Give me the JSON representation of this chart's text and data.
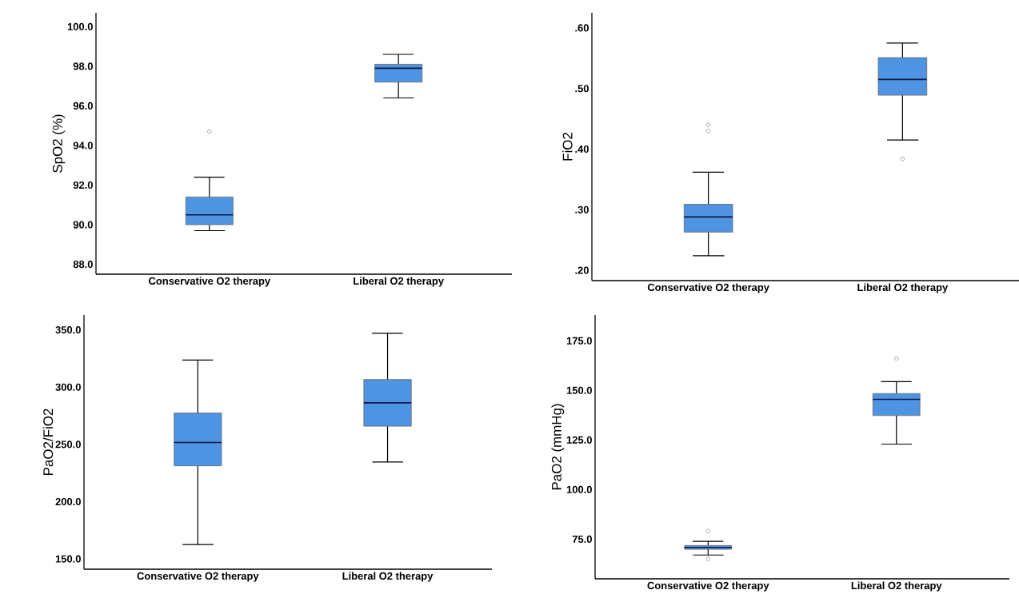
{
  "chart_data": [
    {
      "type": "box",
      "categories": [
        "Conservative O2 therapy",
        "Liberal O2 therapy"
      ],
      "ylabel": "SpO2 (%)",
      "color": "#4f94e3",
      "ylim": [
        87.5,
        100.7
      ],
      "yticks": [
        {
          "value": 88,
          "label": "88.0"
        },
        {
          "value": 90,
          "label": "90.0"
        },
        {
          "value": 92,
          "label": "92.0"
        },
        {
          "value": 94,
          "label": "94.0"
        },
        {
          "value": 96,
          "label": "96.0"
        },
        {
          "value": 98,
          "label": "98.0"
        },
        {
          "value": 100,
          "label": "100.0"
        }
      ],
      "boxes": [
        {
          "low": 89.7,
          "q1": 90.0,
          "median": 90.5,
          "q3": 91.4,
          "high": 92.4,
          "outliers": [
            94.7
          ]
        },
        {
          "low": 96.4,
          "q1": 97.2,
          "median": 97.9,
          "q3": 98.1,
          "high": 98.6
        }
      ]
    },
    {
      "type": "box",
      "categories": [
        "Conservative O2 therapy",
        "Liberal O2 therapy"
      ],
      "ylabel": "FiO2",
      "color": "#4f94e3",
      "ylim": [
        0.183,
        0.625
      ],
      "yticks": [
        {
          "value": 0.2,
          "label": ".20"
        },
        {
          "value": 0.3,
          "label": ".30"
        },
        {
          "value": 0.4,
          "label": ".40"
        },
        {
          "value": 0.5,
          "label": ".50"
        },
        {
          "value": 0.6,
          "label": ".60"
        }
      ],
      "boxes": [
        {
          "low": 0.224,
          "q1": 0.263,
          "median": 0.288,
          "q3": 0.309,
          "high": 0.362,
          "outliers": [
            0.44,
            0.43
          ]
        },
        {
          "low": 0.415,
          "q1": 0.489,
          "median": 0.515,
          "q3": 0.551,
          "high": 0.575,
          "outliers": [
            0.384
          ]
        }
      ]
    },
    {
      "type": "box",
      "categories": [
        "Conservative O2 therapy",
        "Liberal O2 therapy"
      ],
      "ylabel": "PaO2/FiO2",
      "color": "#4f94e3",
      "ylim": [
        141,
        363
      ],
      "yticks": [
        {
          "value": 150,
          "label": "150.0"
        },
        {
          "value": 200,
          "label": "200.0"
        },
        {
          "value": 250,
          "label": "250.0"
        },
        {
          "value": 300,
          "label": "300.0"
        },
        {
          "value": 350,
          "label": "350.0"
        }
      ],
      "boxes": [
        {
          "low": 162.6,
          "q1": 231.3,
          "median": 251.7,
          "q3": 277.4,
          "high": 323.7
        },
        {
          "low": 234.6,
          "q1": 265.9,
          "median": 286.3,
          "q3": 306.7,
          "high": 347
        }
      ]
    },
    {
      "type": "box",
      "categories": [
        "Conservative O2 therapy",
        "Liberal O2 therapy"
      ],
      "ylabel": "PaO2 (mmHg)",
      "color": "#4f94e3",
      "ylim": [
        55,
        188
      ],
      "yticks": [
        {
          "value": 75,
          "label": "75.0"
        },
        {
          "value": 100,
          "label": "100.0"
        },
        {
          "value": 125,
          "label": "125.0"
        },
        {
          "value": 150,
          "label": "150.0"
        },
        {
          "value": 175,
          "label": "175.0"
        }
      ],
      "boxes": [
        {
          "low": 67.0,
          "q1": 69.9,
          "median": 70.8,
          "q3": 71.8,
          "high": 73.9,
          "outliers": [
            79,
            65
          ]
        },
        {
          "low": 122.9,
          "q1": 137.3,
          "median": 145.5,
          "q3": 148.4,
          "high": 154.4,
          "outliers": [
            166.1
          ]
        }
      ]
    }
  ]
}
